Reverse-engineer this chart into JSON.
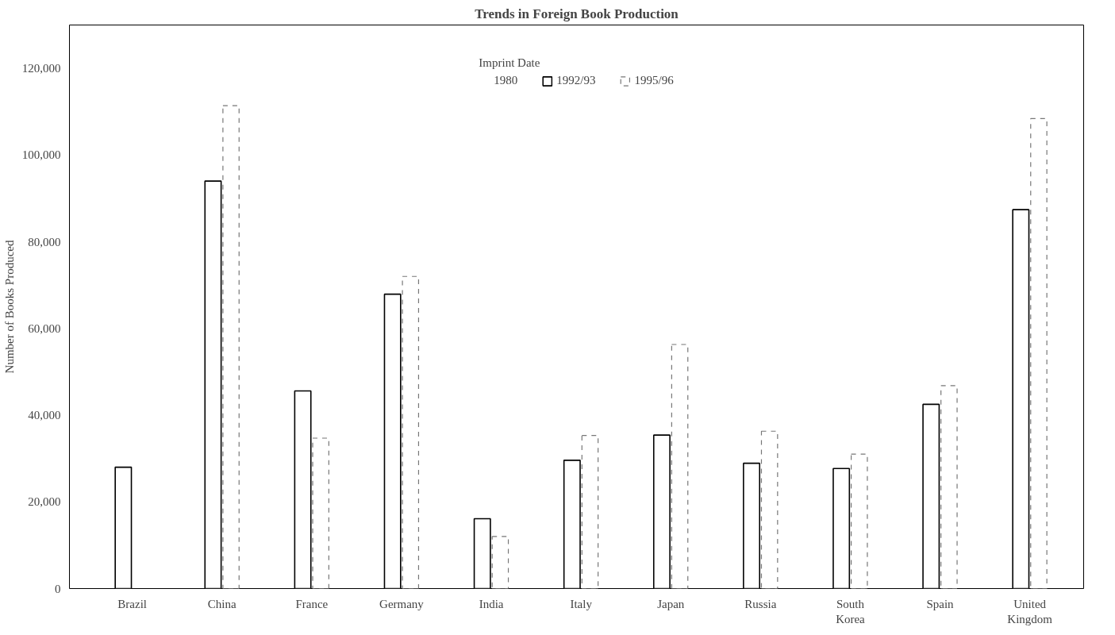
{
  "chart_data": {
    "type": "bar",
    "title": "Trends in Foreign Book Production",
    "ylabel": "Number of Books Produced",
    "legend_title": "Imprint Date",
    "legend": "top",
    "categories": [
      "Brazil",
      "China",
      "France",
      "Germany",
      "India",
      "Italy",
      "Japan",
      "Russia",
      "South Korea",
      "Spain",
      "United Kingdom"
    ],
    "series": [
      {
        "name": "1980",
        "line_style": "none",
        "values": [
          null,
          null,
          null,
          null,
          null,
          null,
          null,
          null,
          null,
          null,
          null
        ]
      },
      {
        "name": "1992/93",
        "color": "#ffffff",
        "line_style": "solid",
        "values": [
          28000,
          94000,
          45600,
          67900,
          16100,
          29600,
          35400,
          28900,
          27700,
          42500,
          87400
        ]
      },
      {
        "name": "1995/96",
        "color": "#ffffff",
        "line_style": "dashed",
        "values": [
          null,
          111400,
          34700,
          72000,
          12000,
          35300,
          56300,
          36300,
          31000,
          46800,
          108400
        ]
      }
    ],
    "ylim": [
      0,
      130000
    ],
    "yticks": [
      0,
      {
        "value": 20000,
        "label": "20,000"
      },
      {
        "value": 40000,
        "label": "40,000"
      },
      {
        "value": 60000,
        "label": "60,000"
      },
      {
        "value": 80000,
        "label": "80,000"
      },
      {
        "value": 100000,
        "label": "100,000"
      },
      {
        "value": 120000,
        "label": "120,000"
      }
    ]
  }
}
